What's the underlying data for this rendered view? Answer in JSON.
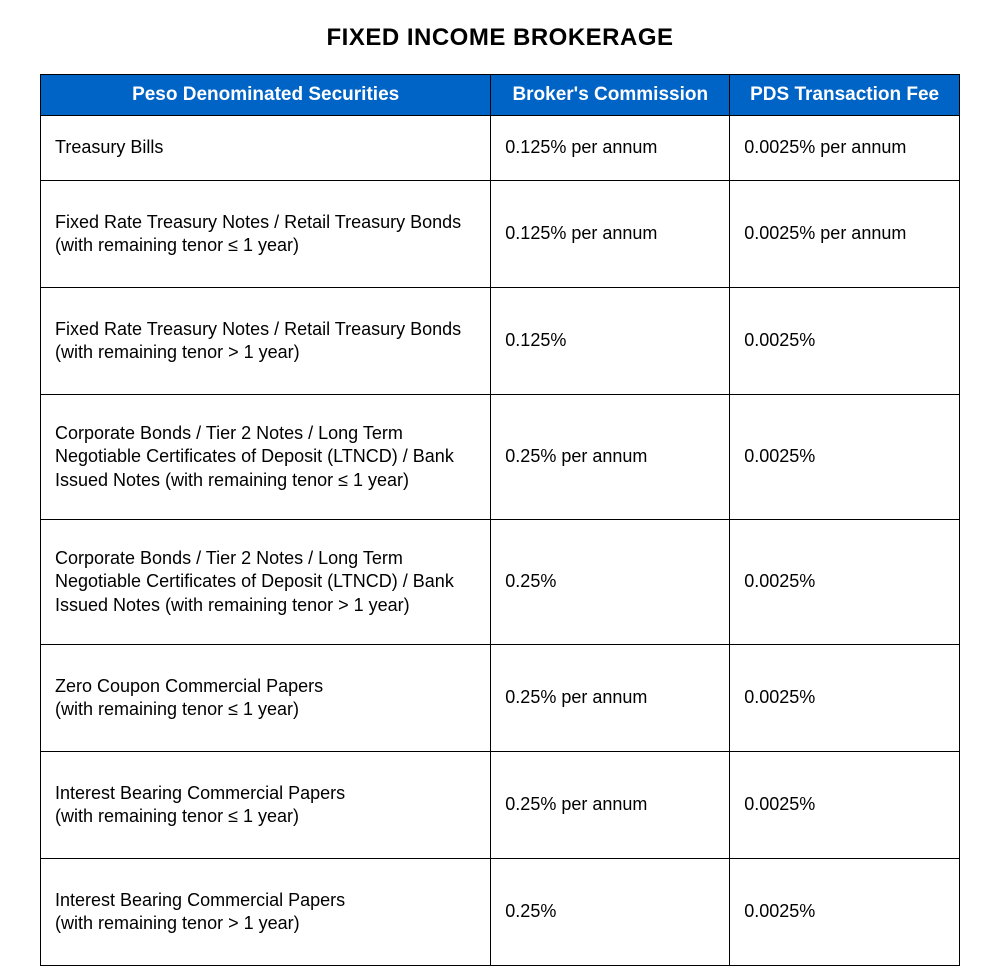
{
  "title": "FIXED INCOME BROKERAGE",
  "table": {
    "columns": [
      "Peso Denominated Securities",
      "Broker's Commission",
      "PDS Transaction Fee"
    ],
    "header_bg": "#0063C6",
    "header_fg": "#ffffff",
    "border_color": "#000000",
    "font_family": "Myriad Pro / Segoe UI / Arial",
    "title_fontsize_pt": 18,
    "header_fontsize_pt": 14,
    "body_fontsize_pt": 13,
    "col_widths_pct": [
      49,
      26,
      25
    ],
    "rows": [
      {
        "security": "Treasury Bills",
        "commission": "0.125% per annum",
        "pds_fee": "0.0025% per annum",
        "height_class": "r-short"
      },
      {
        "security": "Fixed Rate Treasury Notes / Retail Treasury Bonds\n(with remaining tenor ≤ 1 year)",
        "commission": "0.125% per annum",
        "pds_fee": "0.0025% per annum",
        "height_class": "r-tall"
      },
      {
        "security": "Fixed Rate Treasury Notes / Retail Treasury Bonds\n(with remaining tenor > 1 year)",
        "commission": "0.125%",
        "pds_fee": "0.0025%",
        "height_class": "r-tall"
      },
      {
        "security": "Corporate Bonds / Tier 2 Notes / Long Term Negotiable Certificates of Deposit (LTNCD) / Bank Issued Notes (with remaining tenor ≤ 1 year)",
        "commission": "0.25% per annum",
        "pds_fee": "0.0025%",
        "height_class": "r-taller"
      },
      {
        "security": "Corporate Bonds / Tier 2 Notes / Long Term Negotiable Certificates of Deposit (LTNCD) / Bank Issued Notes (with remaining tenor > 1 year)",
        "commission": "0.25%",
        "pds_fee": "0.0025%",
        "height_class": "r-taller"
      },
      {
        "security": "Zero Coupon Commercial Papers\n(with remaining tenor ≤ 1 year)",
        "commission": "0.25% per annum",
        "pds_fee": "0.0025%",
        "height_class": "r-tall"
      },
      {
        "security": "Interest Bearing Commercial Papers\n(with remaining tenor ≤ 1 year)",
        "commission": "0.25% per annum",
        "pds_fee": "0.0025%",
        "height_class": "r-tall"
      },
      {
        "security": "Interest Bearing Commercial Papers\n(with remaining tenor > 1 year)",
        "commission": "0.25%",
        "pds_fee": "0.0025%",
        "height_class": "r-tall"
      }
    ]
  }
}
